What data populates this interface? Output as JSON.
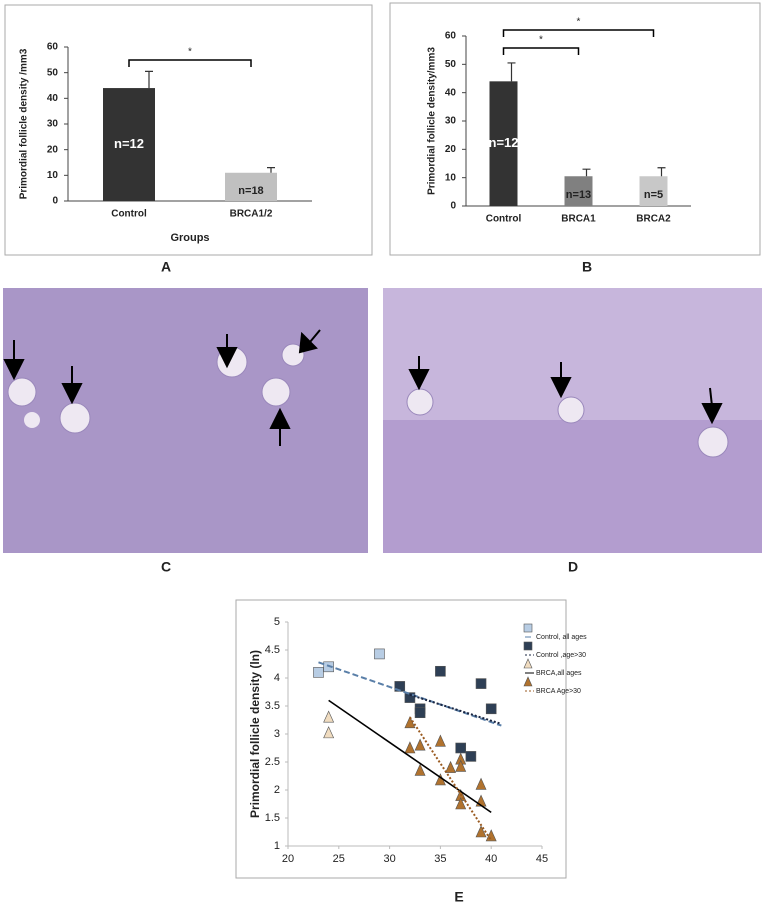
{
  "panels": {
    "labels": [
      "A",
      "B",
      "C",
      "D",
      "E"
    ]
  },
  "chart_data": [
    {
      "type": "bar",
      "y_label": "Primordial follicle density /mm3",
      "x_label": "Groups",
      "categories": [
        "Control",
        "BRCA1/2"
      ],
      "values": [
        44,
        11
      ],
      "errors": [
        6.5,
        2
      ],
      "colors": [
        "#333333",
        "#c0c0c0"
      ],
      "bar_labels": [
        "n=12",
        "n=18"
      ],
      "ylim": [
        0,
        60
      ],
      "yticks": [
        0,
        10,
        20,
        30,
        40,
        50,
        60
      ],
      "significance": [
        {
          "pair": [
            0,
            1
          ],
          "label": "*"
        }
      ]
    },
    {
      "type": "bar",
      "y_label": "Primordial follicle density/mm3",
      "categories": [
        "Control",
        "BRCA1",
        "BRCA2"
      ],
      "values": [
        44,
        10.5,
        10.5
      ],
      "errors": [
        6.5,
        2.5,
        3
      ],
      "colors": [
        "#333333",
        "#808080",
        "#c8c8c8"
      ],
      "bar_labels": [
        "n=12",
        "n=13",
        "n=5"
      ],
      "ylim": [
        0,
        60
      ],
      "yticks": [
        0,
        10,
        20,
        30,
        40,
        50,
        60
      ],
      "significance": [
        {
          "pair": [
            0,
            1
          ],
          "label": "*"
        },
        {
          "pair": [
            0,
            2
          ],
          "label": "*"
        }
      ]
    },
    {
      "type": "scatter",
      "y_label": "Primordial follicle density (ln)",
      "xlim": [
        20,
        45
      ],
      "xticks": [
        20,
        25,
        30,
        35,
        40,
        45
      ],
      "ylim": [
        1,
        5
      ],
      "yticks": [
        1,
        1.5,
        2,
        2.5,
        3,
        3.5,
        4,
        4.5,
        5
      ],
      "legend": "top-right",
      "series": [
        {
          "name": "Control, all ages",
          "color": "#b8cde4",
          "marker": "square",
          "x": [
            23,
            24,
            29
          ],
          "y": [
            4.1,
            4.2,
            4.43
          ],
          "trend": {
            "x": [
              23,
              41
            ],
            "y": [
              4.28,
              3.15
            ],
            "style": "dashed",
            "color": "#5a7fa8"
          }
        },
        {
          "name": "Control ,age>30",
          "color": "#2e3f55",
          "marker": "square",
          "x": [
            31,
            32,
            33,
            33,
            35,
            37,
            38,
            39,
            40
          ],
          "y": [
            3.85,
            3.65,
            3.45,
            3.38,
            4.12,
            2.75,
            2.6,
            3.9,
            3.45
          ],
          "trend": {
            "x": [
              32,
              41
            ],
            "y": [
              3.7,
              3.18
            ],
            "style": "dotted",
            "color": "#1a2540"
          }
        },
        {
          "name": "BRCA,all ages",
          "color": "#f0dcc0",
          "marker": "triangle",
          "x": [
            24,
            24
          ],
          "y": [
            3.3,
            3.02
          ],
          "trend": {
            "x": [
              24,
              40
            ],
            "y": [
              3.6,
              1.6
            ],
            "style": "solid",
            "color": "#000000"
          }
        },
        {
          "name": "BRCA Age>30",
          "color": "#b0722e",
          "marker": "triangle",
          "x": [
            32,
            32,
            33,
            33,
            35,
            35,
            36,
            37,
            37,
            37,
            37,
            39,
            39,
            39,
            40
          ],
          "y": [
            3.2,
            2.75,
            2.8,
            2.35,
            2.87,
            2.18,
            2.4,
            2.55,
            2.42,
            1.9,
            1.75,
            2.1,
            1.8,
            1.25,
            1.18
          ],
          "trend": {
            "x": [
              32,
              40
            ],
            "y": [
              3.3,
              1.1
            ],
            "style": "dotted",
            "color": "#9a5a20"
          }
        }
      ]
    }
  ]
}
